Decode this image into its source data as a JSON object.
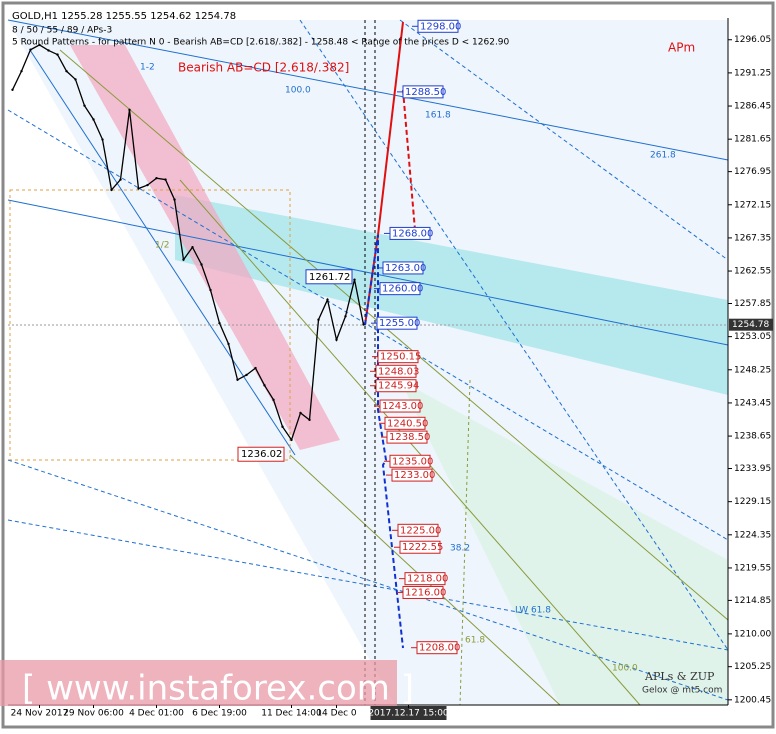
{
  "chart_data": {
    "type": "line",
    "title": "GOLD,H1 1255.28 1255.55 1254.62 1254.78",
    "subtitles": [
      "8 / 50 / 55 / 89 / APs-3",
      "5 Round Patterns - for pattern N 0 - Bearish AB=CD [2.618/.382] - 1258.48 < Range of the prices D < 1262.90"
    ],
    "pattern_label": "Bearish AB=CD [2.618/.382]",
    "corner_label": "APm",
    "credits": [
      "APLs & ZUP",
      "Gelox @ mt5.com"
    ],
    "watermark": "[ www.instaforex.com ]",
    "categories": [
      null,
      null,
      null,
      "24 Nov 2017",
      null,
      null,
      null,
      null,
      null,
      "29 Nov 06:00",
      null,
      null,
      null,
      null,
      null,
      null,
      "4 Dec 01:00",
      null,
      null,
      null,
      null,
      null,
      null,
      "6 Dec 19:00",
      null,
      null,
      null,
      null,
      null,
      null,
      null,
      "11 Dec 14:00",
      null,
      null,
      null,
      null,
      "14 Dec 0",
      null,
      null,
      null,
      null,
      null,
      null,
      null,
      "2017.12.17 15:00"
    ],
    "values": [
      1288.8,
      1291.5,
      1294.6,
      1295.3,
      1294.5,
      1293.9,
      1291.5,
      1290.3,
      1286.5,
      1284.5,
      1281.6,
      1274.3,
      1275.8,
      1285.9,
      1274.5,
      1275.0,
      1276.0,
      1275.8,
      1272.9,
      1264.2,
      1266.0,
      1263.5,
      1259.8,
      1255.0,
      1252.0,
      1246.8,
      1247.5,
      1248.5,
      1246.0,
      1243.9,
      1240.0,
      1238.1,
      1242.0,
      1241.0,
      1255.5,
      1258.4,
      1252.6,
      1256.0,
      1261.3,
      1254.8,
      null,
      null,
      null,
      null,
      null
    ],
    "color": "#000000",
    "ylim": [
      1199.7,
      1299.2
    ],
    "yticks": [
      1296.05,
      1291.25,
      1286.45,
      1281.65,
      1276.95,
      1272.15,
      1267.35,
      1262.55,
      1257.85,
      1253.05,
      1248.25,
      1243.45,
      1238.65,
      1233.95,
      1229.15,
      1224.35,
      1219.55,
      1214.85,
      {
        "value": 1210,
        "label": "1210.00"
      },
      1205.25,
      1200.45
    ],
    "last_price": 1254.78,
    "pivots": {
      "values": [
        1261.72,
        1236.02
      ]
    },
    "target_levels": {
      "values": [
        1298,
        1288.5,
        1268,
        1263,
        1260,
        1255,
        1250.15,
        1248.03,
        1245.94,
        1243,
        1240.5,
        1238.5,
        1235,
        1233,
        1225,
        1222.55,
        1218,
        1216,
        1208
      ],
      "value_labels": [
        "1298.00",
        "1288.50",
        "1268.00",
        "1263.00",
        "1260.00",
        "1255.00",
        "1250.15",
        "1248.03",
        "1245.94",
        "1243.00",
        "1240.50",
        "1238.50",
        "1235.00",
        "1233.00",
        "1225.00",
        "1222.55",
        "1218.00",
        "1216.00",
        "1208.00"
      ],
      "colors": [
        "#1f3fd0",
        "#1f3fd0",
        "#1f3fd0",
        "#1f3fd0",
        "#1f3fd0",
        "#1f3fd0",
        "#d01f1f",
        "#d01f1f",
        "#d01f1f",
        "#d01f1f",
        "#d01f1f",
        "#d01f1f",
        "#d01f1f",
        "#d01f1f",
        "#d01f1f",
        "#d01f1f",
        "#d01f1f",
        "#d01f1f",
        "#d01f1f"
      ]
    },
    "line_labels": [
      "1/2",
      "1-2",
      "100.0",
      "161.8",
      "261.8",
      "38.2",
      "LW 61.8",
      "61.8",
      "100.0"
    ]
  }
}
